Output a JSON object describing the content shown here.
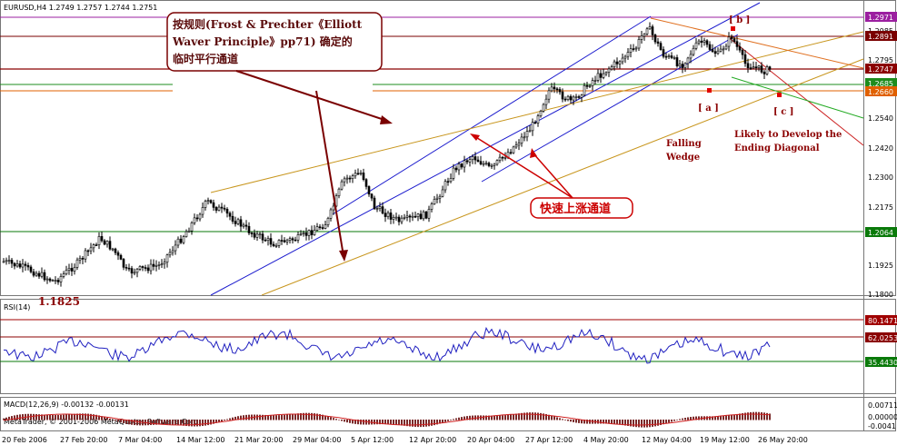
{
  "window": {
    "symbol_line": "EURUSD,H4  1.2749 1.2757 1.2744 1.2751",
    "rsi_label": "RSI(14)",
    "macd_label": "MACD(12,26,9) -0.00132 -0.00131",
    "copyright": "MetaTrader, © 2001-2006 MetaQuotes Software Corp."
  },
  "price_axis": {
    "ticks": [
      "1.2985",
      "1.2795",
      "1.2540",
      "1.2420",
      "1.2300",
      "1.2175",
      "1.1925",
      "1.1800"
    ],
    "tags": [
      {
        "text": "1.2971",
        "bg": "#9b1fa0"
      },
      {
        "text": "1.2891",
        "bg": "#7a0000"
      },
      {
        "text": "1.2747",
        "bg": "#8b0000"
      },
      {
        "text": "1.2685",
        "bg": "#1e8c1e"
      },
      {
        "text": "1.2660",
        "bg": "#e06000"
      },
      {
        "text": "1.2064",
        "bg": "#0a7a0a"
      }
    ]
  },
  "rsi_axis": {
    "tags": [
      {
        "text": "80.1471",
        "bg": "#a00000"
      },
      {
        "text": "62.0253",
        "bg": "#8b0000"
      },
      {
        "text": "35.4430",
        "bg": "#0a7a0a"
      }
    ]
  },
  "macd_axis": {
    "ticks": [
      "0.00711",
      "0.00000",
      "-0.0041"
    ]
  },
  "time_axis": {
    "labels": [
      "20 Feb 2006",
      "27 Feb 20:00",
      "7 Mar 04:00",
      "14 Mar 12:00",
      "21 Mar 20:00",
      "29 Mar 04:00",
      "5 Apr 12:00",
      "12 Apr 20:00",
      "20 Apr 04:00",
      "27 Apr 12:00",
      "4 May 20:00",
      "12 May 04:00",
      "19 May 12:00",
      "26 May 20:00"
    ]
  },
  "annotations": {
    "cn_box_lines": [
      "按规则(Frost & Prechter《Elliott",
      "Waver Principle》pp71) 确定的",
      "临时平行通道"
    ],
    "cn_callout": "快速上涨通道",
    "falling_wedge": [
      "Falling",
      "Wedge"
    ],
    "ending_diagonal": [
      "Likely to Develop the",
      "Ending Diagonal"
    ],
    "wave_a": "[ a ]",
    "wave_b": "[ b ]",
    "wave_c": "[ c ]",
    "low_price": "1.1825"
  },
  "colors": {
    "up_channel": "#1a1acd",
    "parallel_channel": "#c8961e",
    "resistance": "#8b0000",
    "support_green": "#1e8c1e",
    "falling_line": "#e07020",
    "rsi_line": "#2020c0",
    "macd_hist": "#7a2a2a",
    "macd_signal": "#d02020"
  }
}
